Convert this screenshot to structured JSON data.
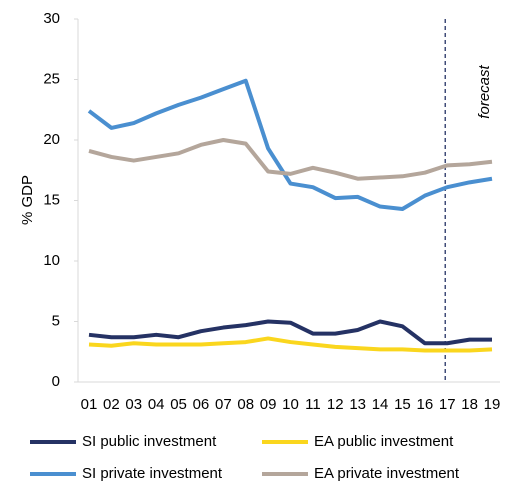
{
  "chart_data": {
    "type": "line",
    "y_label": "% GDP",
    "annotation": "forecast",
    "vline_category": "17",
    "categories": [
      "01",
      "02",
      "03",
      "04",
      "05",
      "06",
      "07",
      "08",
      "09",
      "10",
      "11",
      "12",
      "13",
      "14",
      "15",
      "16",
      "17",
      "18",
      "19"
    ],
    "series": [
      {
        "name": "SI public investment",
        "color": "#253264",
        "values": [
          3.9,
          3.7,
          3.7,
          3.9,
          3.7,
          4.2,
          4.5,
          4.7,
          5.0,
          4.9,
          4.0,
          4.0,
          4.3,
          5.0,
          4.6,
          3.2,
          3.2,
          3.5,
          3.5
        ]
      },
      {
        "name": "EA public investment",
        "color": "#fad61e",
        "values": [
          3.1,
          3.0,
          3.2,
          3.1,
          3.1,
          3.1,
          3.2,
          3.3,
          3.6,
          3.3,
          3.1,
          2.9,
          2.8,
          2.7,
          2.7,
          2.6,
          2.6,
          2.6,
          2.7
        ]
      },
      {
        "name": "SI private investment",
        "color": "#4a8fd0",
        "values": [
          22.4,
          21.0,
          21.4,
          22.2,
          22.9,
          23.5,
          24.2,
          24.9,
          19.3,
          16.4,
          16.1,
          15.2,
          15.3,
          14.5,
          14.3,
          15.4,
          16.1,
          16.5,
          16.8
        ]
      },
      {
        "name": "EA private investment",
        "color": "#b4a69b",
        "values": [
          19.1,
          18.6,
          18.3,
          18.6,
          18.9,
          19.6,
          20.0,
          19.7,
          17.4,
          17.2,
          17.7,
          17.3,
          16.8,
          16.9,
          17.0,
          17.3,
          17.9,
          18.0,
          18.2
        ]
      }
    ],
    "ylim": [
      0,
      30
    ],
    "yticks": [
      0,
      5,
      10,
      15,
      20,
      25,
      30
    ],
    "legend": "bottom"
  }
}
